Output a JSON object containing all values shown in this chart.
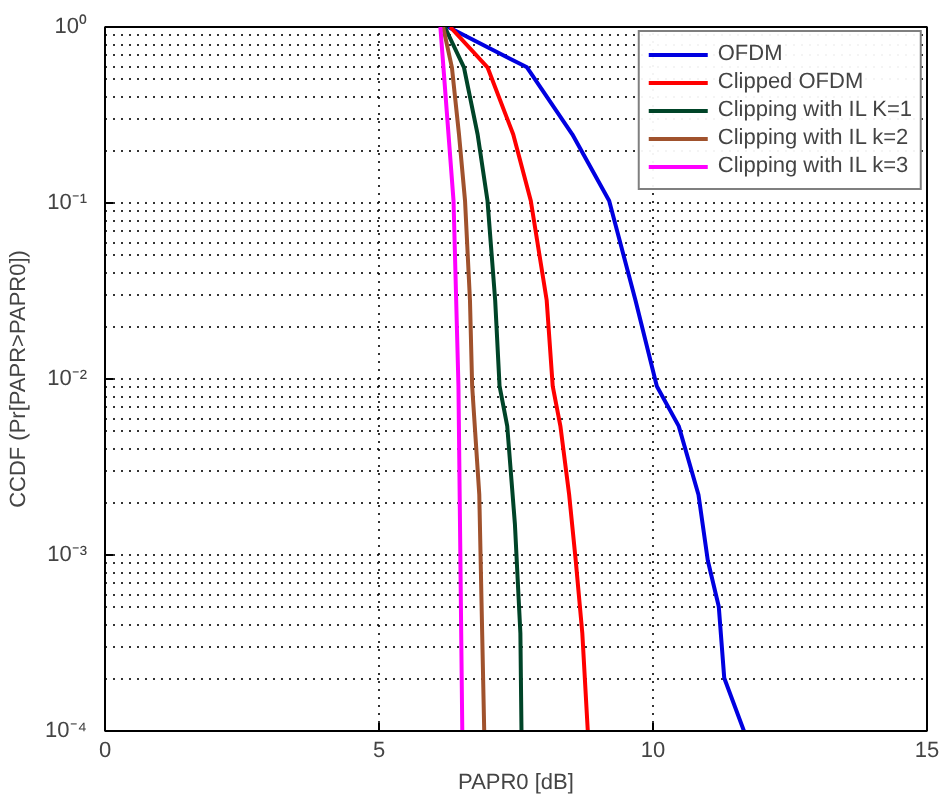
{
  "chart_data": {
    "type": "line",
    "xlabel": "PAPR0 [dB]",
    "ylabel": "CCDF (Pr[PAPR>PAPR0])",
    "log": "y",
    "xlim": [
      0,
      15
    ],
    "xticks": [
      0,
      5,
      10,
      15
    ],
    "ylim": [
      0.0001,
      1
    ],
    "yticks": [
      {
        "value": 0.0001,
        "label": "10⁻⁴"
      },
      {
        "value": 0.001,
        "label": "10⁻³"
      },
      {
        "value": 0.01,
        "label": "10⁻²"
      },
      {
        "value": 0.1,
        "label": "10⁻¹"
      },
      {
        "value": 1,
        "label": "10⁰"
      }
    ],
    "grid": true,
    "legend": "top right",
    "line_style": "solid",
    "marker": "none",
    "series": [
      {
        "name": "OFDM",
        "color": "#0000e0",
        "x": [
          6.26,
          7.7,
          8.53,
          9.2,
          9.68,
          10.07,
          10.47,
          10.83,
          11.0,
          11.2,
          11.3,
          11.66
        ],
        "values": [
          1,
          0.59,
          0.245,
          0.103,
          0.028,
          0.0091,
          0.0054,
          0.0022,
          0.00093,
          0.00051,
          0.0002,
          0.0001
        ]
      },
      {
        "name": "Clipped OFDM",
        "color": "#ff0000",
        "x": [
          6.3,
          6.98,
          7.45,
          7.77,
          8.06,
          8.17,
          8.31,
          8.47,
          8.59,
          8.71,
          8.81
        ],
        "values": [
          1,
          0.59,
          0.245,
          0.103,
          0.028,
          0.0091,
          0.0054,
          0.0022,
          0.00093,
          0.00036,
          0.0001
        ]
      },
      {
        "name": "Clipping with IL K=1",
        "color": "#004428",
        "x": [
          6.2,
          6.55,
          6.8,
          6.98,
          7.12,
          7.2,
          7.34,
          7.48,
          7.58,
          7.6
        ],
        "values": [
          1,
          0.59,
          0.245,
          0.103,
          0.028,
          0.0091,
          0.0054,
          0.0015,
          0.00036,
          0.0001
        ]
      },
      {
        "name": "Clipping with IL k=2",
        "color": "#a0522d",
        "x": [
          6.17,
          6.33,
          6.46,
          6.57,
          6.66,
          6.7,
          6.83,
          6.92
        ],
        "values": [
          1,
          0.59,
          0.245,
          0.103,
          0.028,
          0.0091,
          0.0022,
          0.0001
        ]
      },
      {
        "name": "Clipping with IL k=3",
        "color": "#ff00ff",
        "x": [
          6.12,
          6.36,
          6.45,
          6.52
        ],
        "values": [
          1,
          0.103,
          0.0091,
          0.0001
        ]
      }
    ]
  }
}
